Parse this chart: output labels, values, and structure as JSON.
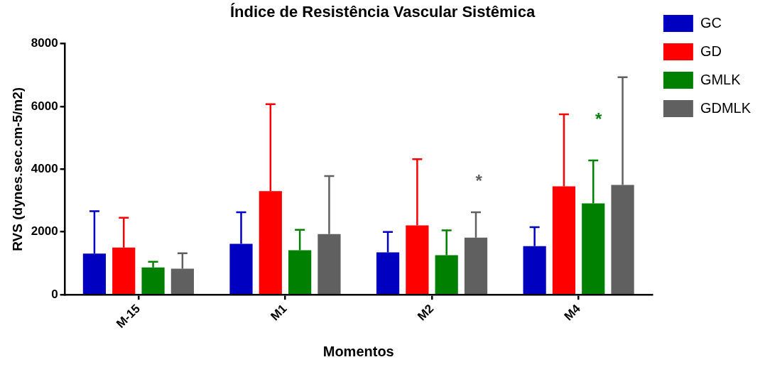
{
  "chart_data": {
    "type": "bar",
    "title": "Índice de Resistência Vascular Sistêmica",
    "xlabel": "Momentos",
    "ylabel": "RVS (dynes.sec.cm-5/m2)",
    "categories": [
      "M-15",
      "M1",
      "M2",
      "M4"
    ],
    "series": [
      {
        "name": "GC",
        "color": "#0000c0",
        "values": [
          1310,
          1620,
          1350,
          1550
        ],
        "errors": [
          [
            1310,
            2660
          ],
          [
            1620,
            2630
          ],
          [
            1350,
            2000
          ],
          [
            1550,
            2150
          ]
        ]
      },
      {
        "name": "GD",
        "color": "#ff0000",
        "values": [
          1500,
          3300,
          2210,
          3450
        ],
        "errors": [
          [
            1500,
            2450
          ],
          [
            3300,
            6070
          ],
          [
            2210,
            4320
          ],
          [
            3450,
            5750
          ]
        ]
      },
      {
        "name": "GMLK",
        "color": "#008000",
        "values": [
          870,
          1420,
          1260,
          2910
        ],
        "errors": [
          [
            870,
            1050
          ],
          [
            1420,
            2070
          ],
          [
            1260,
            2050
          ],
          [
            2910,
            4280
          ]
        ]
      },
      {
        "name": "GDMLK",
        "color": "#606060",
        "values": [
          830,
          1930,
          1820,
          3500
        ],
        "errors": [
          [
            830,
            1320
          ],
          [
            1930,
            3780
          ],
          [
            1820,
            2630
          ],
          [
            3500,
            6930
          ]
        ]
      }
    ],
    "ylim": [
      0,
      8000
    ],
    "yticks": [
      0,
      2000,
      4000,
      6000,
      8000
    ],
    "grid": false,
    "legend": "right",
    "annotations": [
      "*",
      "*"
    ]
  }
}
